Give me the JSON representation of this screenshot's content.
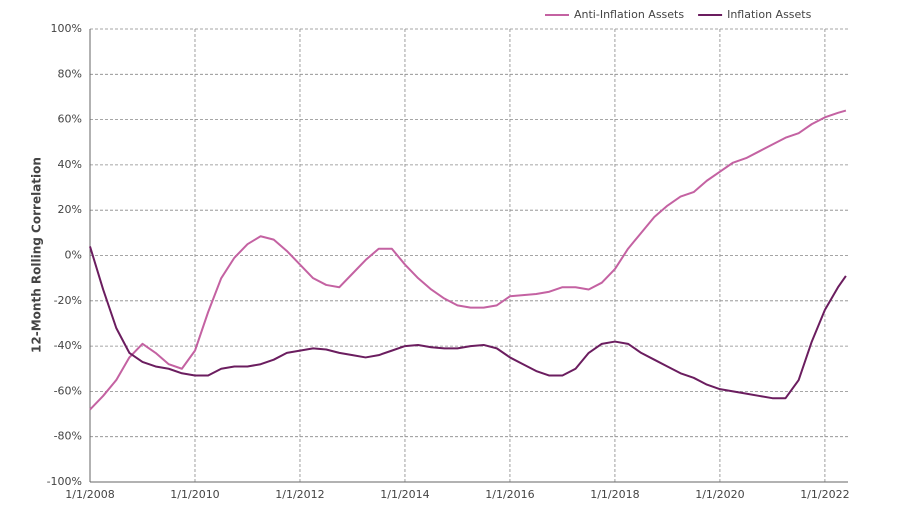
{
  "chart_data": {
    "type": "line",
    "y_label": "12-Month Rolling Correlation",
    "x": [
      2008,
      2008.25,
      2008.5,
      2008.75,
      2009,
      2009.25,
      2009.5,
      2009.75,
      2010,
      2010.25,
      2010.5,
      2010.75,
      2011,
      2011.25,
      2011.5,
      2011.75,
      2012,
      2012.25,
      2012.5,
      2012.75,
      2013,
      2013.25,
      2013.5,
      2013.75,
      2014,
      2014.25,
      2014.5,
      2014.75,
      2015,
      2015.25,
      2015.5,
      2015.75,
      2016,
      2016.25,
      2016.5,
      2016.75,
      2017,
      2017.25,
      2017.5,
      2017.75,
      2018,
      2018.25,
      2018.5,
      2018.75,
      2019,
      2019.25,
      2019.5,
      2019.75,
      2020,
      2020.25,
      2020.5,
      2020.75,
      2021,
      2021.25,
      2021.5,
      2021.75,
      2022,
      2022.25,
      2022.4
    ],
    "series": [
      {
        "name": "Anti-Inflation Assets",
        "color": "#c462a2",
        "values": [
          -68,
          -62,
          -55,
          -45,
          -39,
          -43,
          -48,
          -50,
          -42,
          -25,
          -10,
          -1,
          5,
          8.5,
          7,
          2,
          -4,
          -10,
          -13,
          -14,
          -8,
          -2,
          3,
          3,
          -4,
          -10,
          -15,
          -19,
          -22,
          -23,
          -23,
          -22,
          -18,
          -17.5,
          -17,
          -16,
          -14,
          -14,
          -15,
          -12,
          -6,
          3,
          10,
          17,
          22,
          26,
          28,
          33,
          37,
          41,
          43,
          46,
          49,
          52,
          54,
          58,
          61,
          63,
          64
        ]
      },
      {
        "name": "Inflation Assets",
        "color": "#6b1d5f",
        "values": [
          4,
          -15,
          -32,
          -43,
          -47,
          -49,
          -50,
          -52,
          -53,
          -53,
          -50,
          -49,
          -49,
          -48,
          -46,
          -43,
          -42,
          -41,
          -41.5,
          -43,
          -44,
          -45,
          -44,
          -42,
          -40,
          -39.5,
          -40.5,
          -41,
          -41,
          -40,
          -39.5,
          -41,
          -45,
          -48,
          -51,
          -53,
          -53,
          -50,
          -43,
          -39,
          -38,
          -39,
          -43,
          -46,
          -49,
          -52,
          -54,
          -57,
          -59,
          -60,
          -61,
          -62,
          -63,
          -63,
          -55,
          -38,
          -24,
          -14,
          -9
        ]
      }
    ],
    "xlim": [
      2008,
      2022.44
    ],
    "xticks": [
      {
        "value": 2008,
        "label": "1/1/2008"
      },
      {
        "value": 2010,
        "label": "1/1/2010"
      },
      {
        "value": 2012,
        "label": "1/1/2012"
      },
      {
        "value": 2014,
        "label": "1/1/2014"
      },
      {
        "value": 2016,
        "label": "1/1/2016"
      },
      {
        "value": 2018,
        "label": "1/1/2018"
      },
      {
        "value": 2020,
        "label": "1/1/2020"
      },
      {
        "value": 2022,
        "label": "1/1/2022"
      }
    ],
    "ylim": [
      -100,
      100
    ],
    "yticks": [
      {
        "value": -100,
        "label": "-100%"
      },
      {
        "value": -80,
        "label": "-80%"
      },
      {
        "value": -60,
        "label": "-60%"
      },
      {
        "value": -40,
        "label": "-40%"
      },
      {
        "value": -20,
        "label": "-20%"
      },
      {
        "value": 0,
        "label": "0%"
      },
      {
        "value": 20,
        "label": "20%"
      },
      {
        "value": 40,
        "label": "40%"
      },
      {
        "value": 60,
        "label": "60%"
      },
      {
        "value": 80,
        "label": "80%"
      },
      {
        "value": 100,
        "label": "100%"
      }
    ],
    "grid": true,
    "legend": "top-right"
  }
}
